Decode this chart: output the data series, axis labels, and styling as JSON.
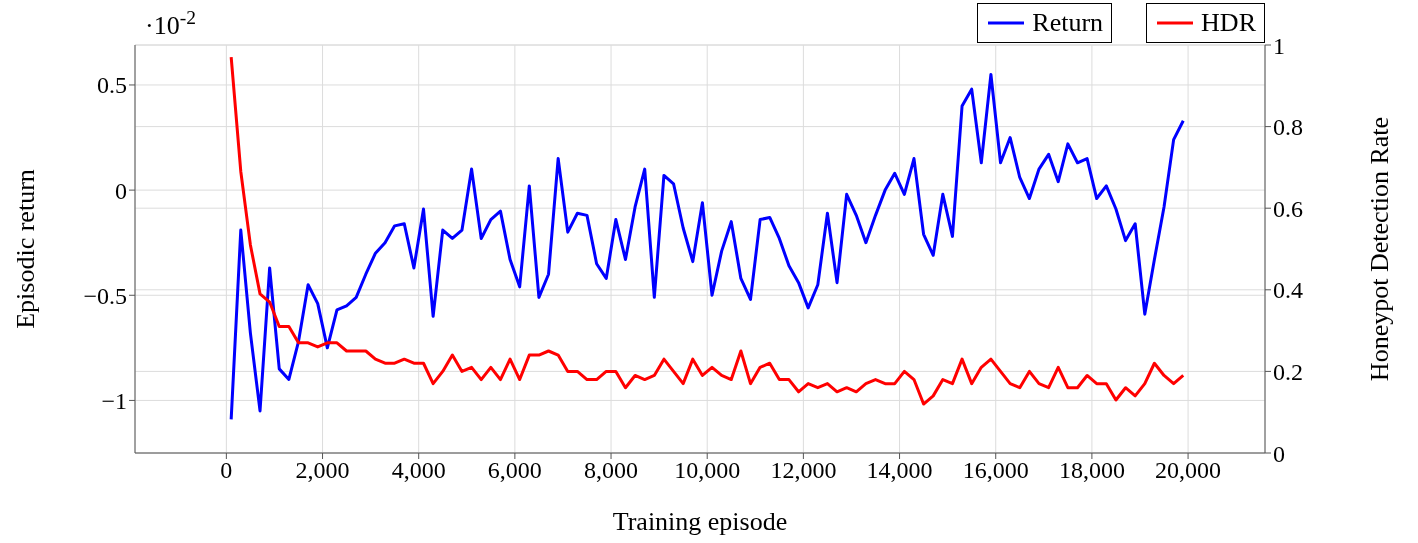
{
  "chart_data": {
    "type": "line",
    "xlabel": "Training episode",
    "ylabel": "Episodic return",
    "y2label": "Honeypot Detection Rate",
    "annotations": [
      "·10$^{-2}$"
    ],
    "x": [
      100,
      300,
      500,
      700,
      900,
      1100,
      1300,
      1500,
      1700,
      1900,
      2100,
      2300,
      2500,
      2700,
      2900,
      3100,
      3300,
      3500,
      3700,
      3900,
      4100,
      4300,
      4500,
      4700,
      4900,
      5100,
      5300,
      5500,
      5700,
      5900,
      6100,
      6300,
      6500,
      6700,
      6900,
      7100,
      7300,
      7500,
      7700,
      7900,
      8100,
      8300,
      8500,
      8700,
      8900,
      9100,
      9300,
      9500,
      9700,
      9900,
      10100,
      10300,
      10500,
      10700,
      10900,
      11100,
      11300,
      11500,
      11700,
      11900,
      12100,
      12300,
      12500,
      12700,
      12900,
      13100,
      13300,
      13500,
      13700,
      13900,
      14100,
      14300,
      14500,
      14700,
      14900,
      15100,
      15300,
      15500,
      15700,
      15900,
      16100,
      16300,
      16500,
      16700,
      16900,
      17100,
      17300,
      17500,
      17700,
      17900,
      18100,
      18300,
      18500,
      18700,
      18900,
      19100,
      19300,
      19500,
      19700,
      19900
    ],
    "series": [
      {
        "name": "Return",
        "color": "#0000ff",
        "values": [
          -1.09,
          -0.19,
          -0.68,
          -1.05,
          -0.37,
          -0.85,
          -0.9,
          -0.72,
          -0.45,
          -0.54,
          -0.75,
          -0.57,
          -0.55,
          -0.51,
          -0.4,
          -0.3,
          -0.25,
          -0.17,
          -0.16,
          -0.37,
          -0.09,
          -0.6,
          -0.19,
          -0.23,
          -0.19,
          0.1,
          -0.23,
          -0.14,
          -0.1,
          -0.33,
          -0.46,
          0.02,
          -0.51,
          -0.4,
          0.15,
          -0.2,
          -0.11,
          -0.12,
          -0.35,
          -0.42,
          -0.14,
          -0.33,
          -0.08,
          0.1,
          -0.51,
          0.07,
          0.03,
          -0.18,
          -0.34,
          -0.06,
          -0.5,
          -0.29,
          -0.15,
          -0.42,
          -0.52,
          -0.14,
          -0.13,
          -0.23,
          -0.36,
          -0.44,
          -0.56,
          -0.45,
          -0.11,
          -0.44,
          -0.02,
          -0.12,
          -0.25,
          -0.12,
          0.0,
          0.08,
          -0.02,
          0.15,
          -0.21,
          -0.31,
          -0.02,
          -0.22,
          0.4,
          0.48,
          0.13,
          0.55,
          0.13,
          0.25,
          0.06,
          -0.04,
          0.1,
          0.17,
          0.04,
          0.22,
          0.13,
          0.15,
          -0.04,
          0.02,
          -0.09,
          -0.24,
          -0.16,
          -0.59,
          -0.33,
          -0.08,
          0.24,
          0.33
        ]
      },
      {
        "name": "HDR",
        "color": "#ff0000",
        "axis": "y2",
        "values": [
          0.97,
          0.69,
          0.51,
          0.39,
          0.37,
          0.31,
          0.31,
          0.27,
          0.27,
          0.26,
          0.27,
          0.27,
          0.25,
          0.25,
          0.25,
          0.23,
          0.22,
          0.22,
          0.23,
          0.22,
          0.22,
          0.17,
          0.2,
          0.24,
          0.2,
          0.21,
          0.18,
          0.21,
          0.18,
          0.23,
          0.18,
          0.24,
          0.24,
          0.25,
          0.24,
          0.2,
          0.2,
          0.18,
          0.18,
          0.2,
          0.2,
          0.16,
          0.19,
          0.18,
          0.19,
          0.23,
          0.2,
          0.17,
          0.23,
          0.19,
          0.21,
          0.19,
          0.18,
          0.25,
          0.17,
          0.21,
          0.22,
          0.18,
          0.18,
          0.15,
          0.17,
          0.16,
          0.17,
          0.15,
          0.16,
          0.15,
          0.17,
          0.18,
          0.17,
          0.17,
          0.2,
          0.18,
          0.12,
          0.14,
          0.18,
          0.17,
          0.23,
          0.17,
          0.21,
          0.23,
          0.2,
          0.17,
          0.16,
          0.2,
          0.17,
          0.16,
          0.21,
          0.16,
          0.16,
          0.19,
          0.17,
          0.17,
          0.13,
          0.16,
          0.14,
          0.17,
          0.22,
          0.19,
          0.17,
          0.19
        ]
      }
    ],
    "xlim": [
      -1900,
      21600
    ],
    "xticks": [
      {
        "value": 0,
        "label": "0"
      },
      {
        "value": 2000,
        "label": "2,000"
      },
      {
        "value": 4000,
        "label": "4,000"
      },
      {
        "value": 6000,
        "label": "6,000"
      },
      {
        "value": 8000,
        "label": "8,000"
      },
      {
        "value": 10000,
        "label": "10,000"
      },
      {
        "value": 12000,
        "label": "12,000"
      },
      {
        "value": 14000,
        "label": "14,000"
      },
      {
        "value": 16000,
        "label": "16,000"
      },
      {
        "value": 18000,
        "label": "18,000"
      },
      {
        "value": 20000,
        "label": "20,000"
      }
    ],
    "ylim": [
      -1.25,
      0.69
    ],
    "yticks": [
      {
        "value": -1,
        "label": "−1"
      },
      {
        "value": -0.5,
        "label": "−0.5"
      },
      0,
      0.5
    ],
    "y2lim": [
      0,
      1
    ],
    "y2ticks": [
      0,
      0.2,
      0.4,
      0.6,
      0.8,
      1
    ],
    "grid": true,
    "legend": "top right",
    "line_style": "solid",
    "marker": "none"
  }
}
